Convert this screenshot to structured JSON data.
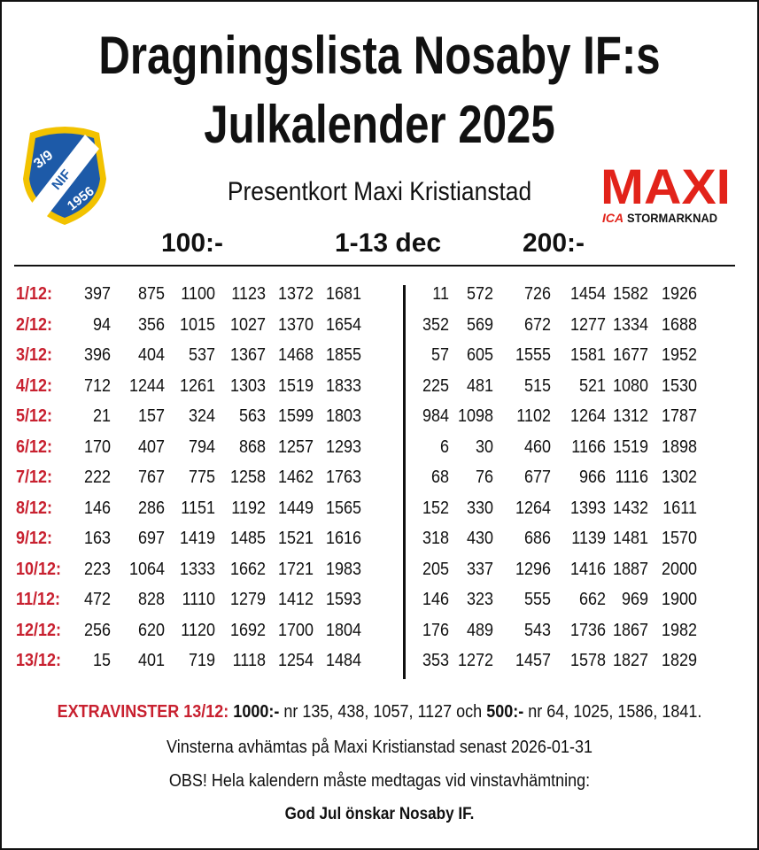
{
  "header": {
    "title_lines": [
      "Dragningslista Nosaby IF:s",
      "Julkalender 2025"
    ],
    "subtitle": "Presentkort Maxi Kristianstad"
  },
  "club_logo": {
    "top": "3/9",
    "middle": "NIF",
    "bottom": "1956"
  },
  "sponsor_logo": {
    "name": "MAXI",
    "prefix": "ICA",
    "suffix": "STORMARKNAD"
  },
  "columns": {
    "left": "100:-",
    "middle": "1-13 dec",
    "right": "200:-"
  },
  "rows": [
    {
      "date": "1/12:",
      "left": [
        397,
        875,
        1100,
        1123,
        1372,
        1681
      ],
      "right": [
        11,
        572,
        726,
        1454,
        1582,
        1926
      ]
    },
    {
      "date": "2/12:",
      "left": [
        94,
        356,
        1015,
        1027,
        1370,
        1654
      ],
      "right": [
        352,
        569,
        672,
        1277,
        1334,
        1688
      ]
    },
    {
      "date": "3/12:",
      "left": [
        396,
        404,
        537,
        1367,
        1468,
        1855
      ],
      "right": [
        57,
        605,
        1555,
        1581,
        1677,
        1952
      ]
    },
    {
      "date": "4/12:",
      "left": [
        712,
        1244,
        1261,
        1303,
        1519,
        1833
      ],
      "right": [
        225,
        481,
        515,
        521,
        1080,
        1530
      ]
    },
    {
      "date": "5/12:",
      "left": [
        21,
        157,
        324,
        563,
        1599,
        1803
      ],
      "right": [
        984,
        1098,
        1102,
        1264,
        1312,
        1787
      ]
    },
    {
      "date": "6/12:",
      "left": [
        170,
        407,
        794,
        868,
        1257,
        1293
      ],
      "right": [
        6,
        30,
        460,
        1166,
        1519,
        1898
      ]
    },
    {
      "date": "7/12:",
      "left": [
        222,
        767,
        775,
        1258,
        1462,
        1763
      ],
      "right": [
        68,
        76,
        677,
        966,
        1116,
        1302
      ]
    },
    {
      "date": "8/12:",
      "left": [
        146,
        286,
        1151,
        1192,
        1449,
        1565
      ],
      "right": [
        152,
        330,
        1264,
        1393,
        1432,
        1611
      ]
    },
    {
      "date": "9/12:",
      "left": [
        163,
        697,
        1419,
        1485,
        1521,
        1616
      ],
      "right": [
        318,
        430,
        686,
        1139,
        1481,
        1570
      ]
    },
    {
      "date": "10/12:",
      "left": [
        223,
        1064,
        1333,
        1662,
        1721,
        1983
      ],
      "right": [
        205,
        337,
        1296,
        1416,
        1887,
        2000
      ]
    },
    {
      "date": "11/12:",
      "left": [
        472,
        828,
        1110,
        1279,
        1412,
        1593
      ],
      "right": [
        146,
        323,
        555,
        662,
        969,
        1900
      ]
    },
    {
      "date": "12/12:",
      "left": [
        256,
        620,
        1120,
        1692,
        1700,
        1804
      ],
      "right": [
        176,
        489,
        543,
        1736,
        1867,
        1982
      ]
    },
    {
      "date": "13/12:",
      "left": [
        15,
        401,
        719,
        1118,
        1254,
        1484
      ],
      "right": [
        353,
        1272,
        1457,
        1578,
        1827,
        1829
      ]
    }
  ],
  "extra": {
    "label": "EXTRAVINSTER 13/12:",
    "prize1": "1000:-",
    "numbers1": "nr 135, 438, 1057, 1127 och",
    "prize2": "500:-",
    "numbers2": "nr 64, 1025, 1586, 1841."
  },
  "footer": [
    "Vinsterna avhämtas på Maxi Kristianstad senast 2026-01-31",
    "OBS! Hela kalendern måste medtagas vid vinstavhämtning:",
    "God Jul önskar Nosaby IF."
  ]
}
